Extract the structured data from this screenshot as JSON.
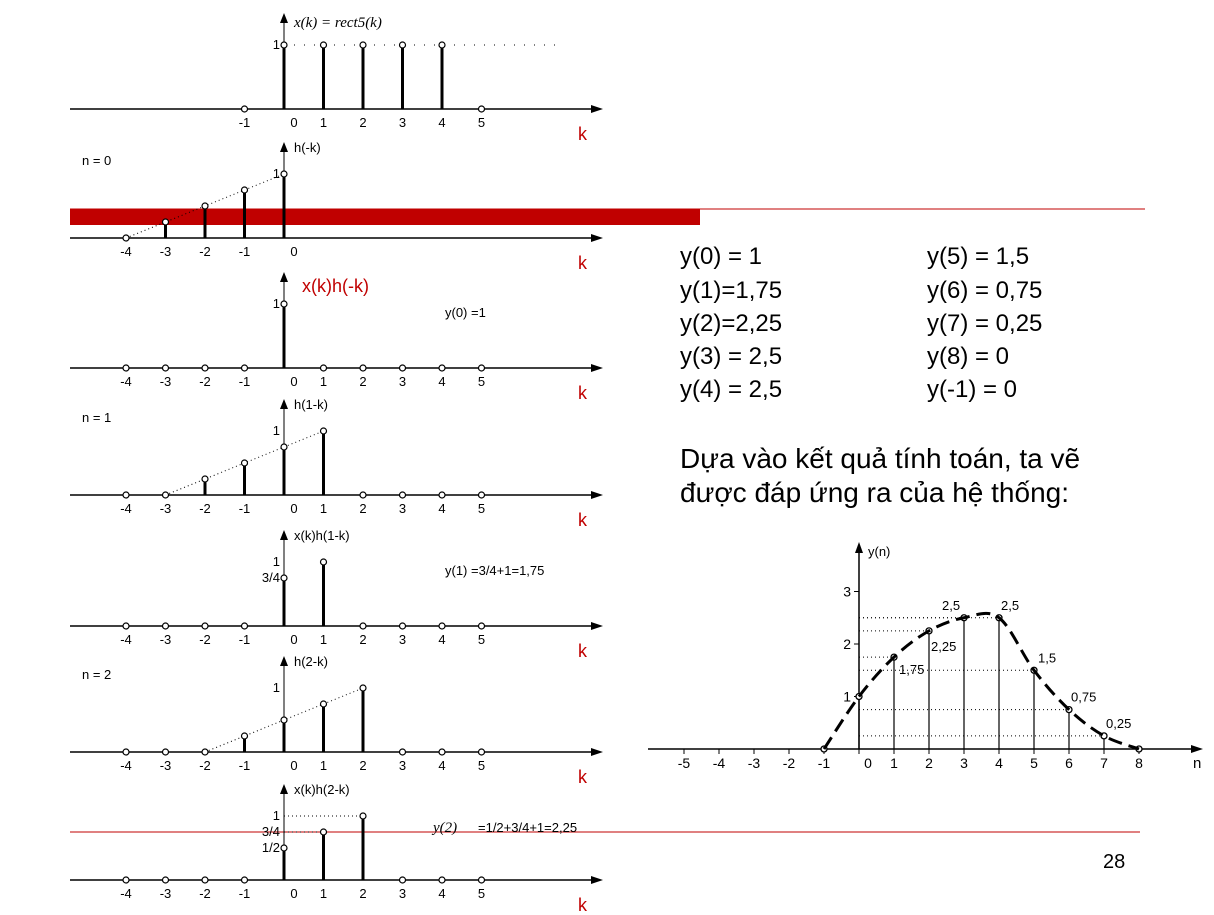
{
  "accent_color": "#c00000",
  "page_number": "28",
  "panels": [
    {
      "title": "x(k) = rect5(k)",
      "math": true,
      "side_label": "",
      "note": "",
      "note_math_prefix": "",
      "stems": [
        [
          0,
          1
        ],
        [
          1,
          1
        ],
        [
          2,
          1
        ],
        [
          3,
          1
        ],
        [
          4,
          1
        ]
      ],
      "zeros": [
        -1,
        5
      ],
      "ticks": [
        "-1",
        "0",
        "1",
        "2",
        "3",
        "4",
        "5"
      ],
      "tick_ks": [
        -1,
        0,
        1,
        2,
        3,
        4,
        5
      ],
      "ylabels": [
        {
          "text": "1",
          "v": 1
        }
      ],
      "dotted_level": 1,
      "ramp": false,
      "k_label": "k"
    },
    {
      "title": "h(-k)",
      "side_label": "n = 0",
      "note": "",
      "stems": [
        [
          -4,
          0
        ],
        [
          -3,
          0.25
        ],
        [
          -2,
          0.5
        ],
        [
          -1,
          0.75
        ],
        [
          0,
          1
        ]
      ],
      "zeros": [],
      "ticks": [
        "-4",
        "-3",
        "-2",
        "-1",
        "0"
      ],
      "tick_ks": [
        -4,
        -3,
        -2,
        -1,
        0
      ],
      "ylabels": [
        {
          "text": "1",
          "v": 1
        }
      ],
      "ramp_from": -4,
      "ramp_to": 0,
      "k_label": "k"
    },
    {
      "title": "x(k)h(-k)",
      "title_red": true,
      "side_label": "",
      "note": "y(0) =1",
      "stems": [
        [
          0,
          1
        ]
      ],
      "zeros": [
        -4,
        -3,
        -2,
        -1,
        1,
        2,
        3,
        4,
        5
      ],
      "ticks": [
        "-4",
        "-3",
        "-2",
        "-1",
        "0",
        "1",
        "2",
        "3",
        "4",
        "5"
      ],
      "tick_ks": [
        -4,
        -3,
        -2,
        -1,
        0,
        1,
        2,
        3,
        4,
        5
      ],
      "ylabels": [
        {
          "text": "1",
          "v": 1
        }
      ],
      "k_label": "k"
    },
    {
      "title": "h(1-k)",
      "side_label": "n = 1",
      "note": "",
      "stems": [
        [
          -3,
          0
        ],
        [
          -2,
          0.25
        ],
        [
          -1,
          0.5
        ],
        [
          0,
          0.75
        ],
        [
          1,
          1
        ]
      ],
      "zeros": [
        -4,
        2,
        3,
        4,
        5
      ],
      "ticks": [
        "-4",
        "-3",
        "-2",
        "-1",
        "0",
        "1",
        "2",
        "3",
        "4",
        "5"
      ],
      "tick_ks": [
        -4,
        -3,
        -2,
        -1,
        0,
        1,
        2,
        3,
        4,
        5
      ],
      "ylabels": [
        {
          "text": "1",
          "v": 1
        }
      ],
      "ramp_from": -3,
      "ramp_to": 1,
      "k_label": "k"
    },
    {
      "title": "x(k)h(1-k)",
      "side_label": "",
      "note": "y(1) =3/4+1=1,75",
      "stems": [
        [
          0,
          0.75
        ],
        [
          1,
          1
        ]
      ],
      "zeros": [
        -4,
        -3,
        -2,
        -1,
        2,
        3,
        4,
        5
      ],
      "ticks": [
        "-4",
        "-3",
        "-2",
        "-1",
        "0",
        "1",
        "2",
        "3",
        "4",
        "5"
      ],
      "tick_ks": [
        -4,
        -3,
        -2,
        -1,
        0,
        1,
        2,
        3,
        4,
        5
      ],
      "ylabels": [
        {
          "text": "1",
          "v": 1
        },
        {
          "text": "3/4",
          "v": 0.75
        }
      ],
      "k_label": "k"
    },
    {
      "title": "h(2-k)",
      "side_label": "n = 2",
      "note": "",
      "stems": [
        [
          -2,
          0
        ],
        [
          -1,
          0.25
        ],
        [
          0,
          0.5
        ],
        [
          1,
          0.75
        ],
        [
          2,
          1
        ]
      ],
      "zeros": [
        -4,
        -3,
        3,
        4,
        5
      ],
      "ticks": [
        "-4",
        "-3",
        "-2",
        "-1",
        "0",
        "1",
        "2",
        "3",
        "4",
        "5"
      ],
      "tick_ks": [
        -4,
        -3,
        -2,
        -1,
        0,
        1,
        2,
        3,
        4,
        5
      ],
      "ylabels": [
        {
          "text": "1",
          "v": 1
        }
      ],
      "ramp_from": -2,
      "ramp_to": 2,
      "k_label": "k"
    },
    {
      "title": "x(k)h(2-k)",
      "side_label": "",
      "note": "=1/2+3/4+1=2,25",
      "note_math_prefix": "y(2)",
      "stems": [
        [
          0,
          0.5
        ],
        [
          1,
          0.75
        ],
        [
          2,
          1
        ]
      ],
      "zeros": [
        -4,
        -3,
        -2,
        -1,
        3,
        4,
        5
      ],
      "ticks": [
        "-4",
        "-3",
        "-2",
        "-1",
        "0",
        "1",
        "2",
        "3",
        "4",
        "5"
      ],
      "tick_ks": [
        -4,
        -3,
        -2,
        -1,
        0,
        1,
        2,
        3,
        4,
        5
      ],
      "ylabels": [
        {
          "text": "1",
          "v": 1
        },
        {
          "text": "3/4",
          "v": 0.75
        },
        {
          "text": "1/2",
          "v": 0.5
        }
      ],
      "dotted_stems": true,
      "k_label": "k"
    }
  ],
  "results_left": [
    "y(0) = 1",
    "y(1)=1,75",
    "y(2)=2,25",
    "y(3) = 2,5",
    "y(4) = 2,5"
  ],
  "results_right": [
    "y(5) = 1,5",
    "y(6) = 0,75",
    "y(7) = 0,25",
    "y(8) = 0",
    "y(-1) = 0"
  ],
  "conclusion": [
    "Dựa vào kết quả tính toán, ta vẽ",
    "được đáp ứng ra của hệ thống:"
  ],
  "chart_data": {
    "type": "stem",
    "title": "",
    "xlabel": "n",
    "ylabel": "y(n)",
    "xlim": [
      -5,
      8
    ],
    "ylim": [
      0,
      3
    ],
    "x_ticks": [
      "-5",
      "-4",
      "-3",
      "-2",
      "-1",
      "0",
      "1",
      "2",
      "3",
      "4",
      "5",
      "6",
      "7",
      "8"
    ],
    "y_ticks": [
      "1",
      "2",
      "3"
    ],
    "x": [
      -1,
      0,
      1,
      2,
      3,
      4,
      5,
      6,
      7,
      8
    ],
    "y": [
      0,
      1,
      1.75,
      2.25,
      2.5,
      2.5,
      1.5,
      0.75,
      0.25,
      0
    ],
    "data_labels": [
      {
        "n": 1,
        "text": "1,75"
      },
      {
        "n": 2,
        "text": "2,25"
      },
      {
        "n": 3,
        "text": "2,5"
      },
      {
        "n": 4,
        "text": "2,5"
      },
      {
        "n": 5,
        "text": "1,5"
      },
      {
        "n": 6,
        "text": "0,75"
      },
      {
        "n": 7,
        "text": "0,25"
      }
    ],
    "envelope": "dashed"
  }
}
